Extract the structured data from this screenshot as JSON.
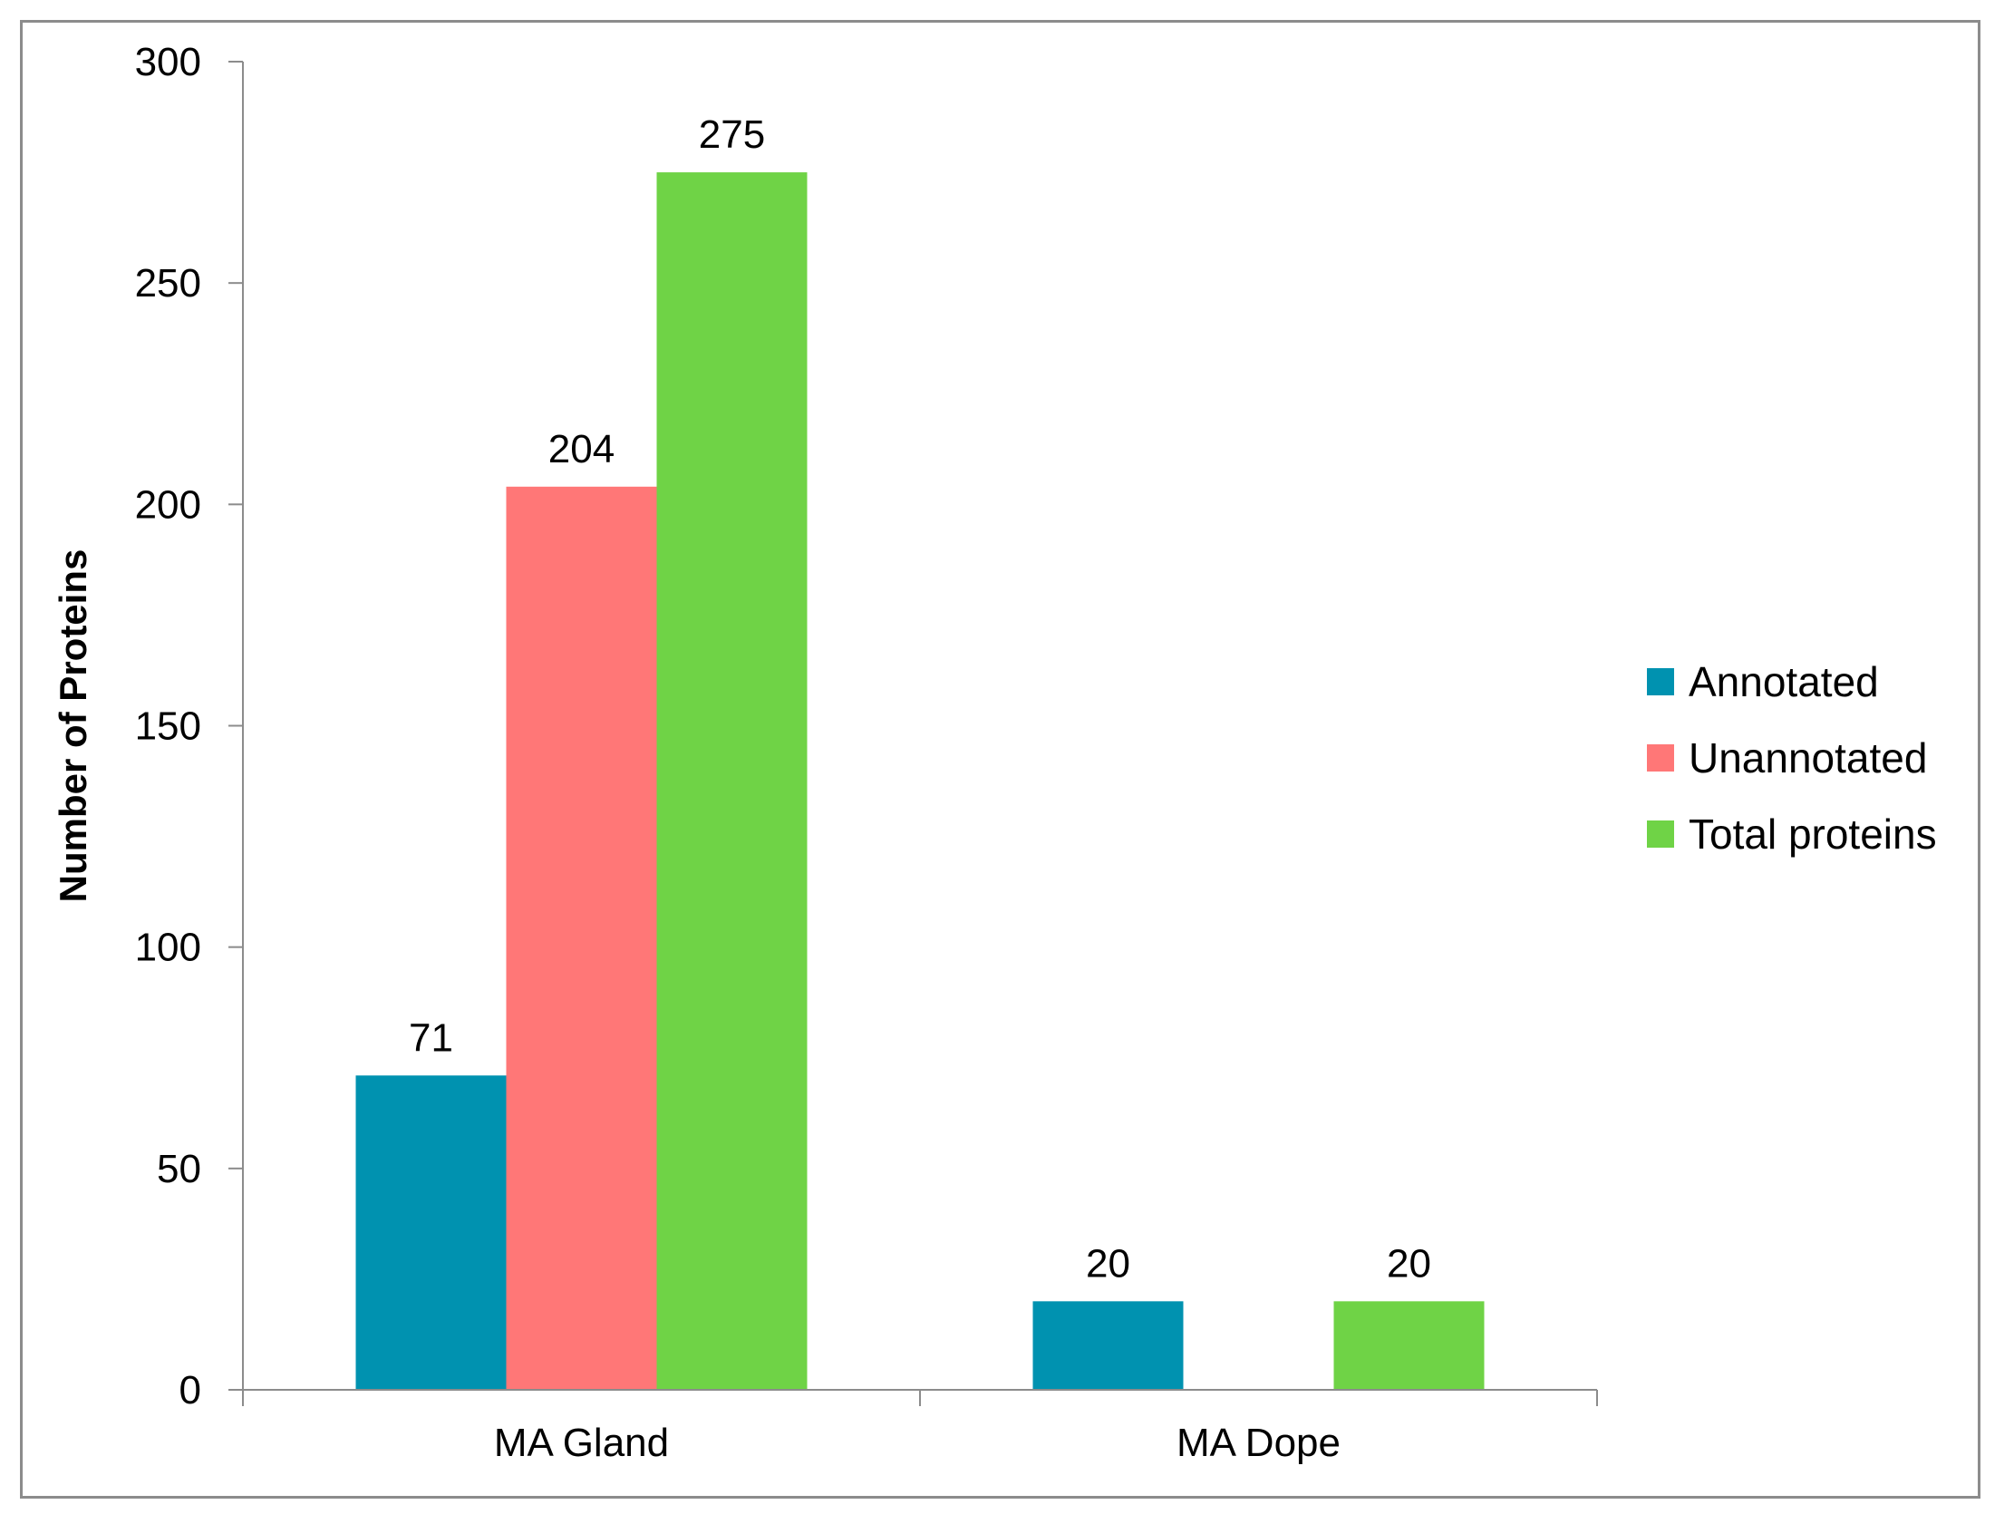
{
  "chart_data": {
    "type": "bar",
    "categories": [
      "MA Gland",
      "MA Dope"
    ],
    "series": [
      {
        "name": "Annotated",
        "color": "#0092B0",
        "values": [
          71,
          20
        ]
      },
      {
        "name": "Unannotated",
        "color": "#FF7777",
        "values": [
          204,
          null
        ]
      },
      {
        "name": "Total proteins",
        "color": "#6FD346",
        "values": [
          275,
          20
        ]
      }
    ],
    "title": "",
    "xlabel": "",
    "ylabel": "Number of Proteins",
    "ylim": [
      0,
      300
    ],
    "yticks": [
      0,
      50,
      100,
      150,
      200,
      250,
      300
    ],
    "grid": false,
    "legend": "right",
    "data_labels": true,
    "colors": {
      "axis": "#8C8C8C",
      "frame": "#8C8C8C",
      "text": "#000000"
    }
  }
}
